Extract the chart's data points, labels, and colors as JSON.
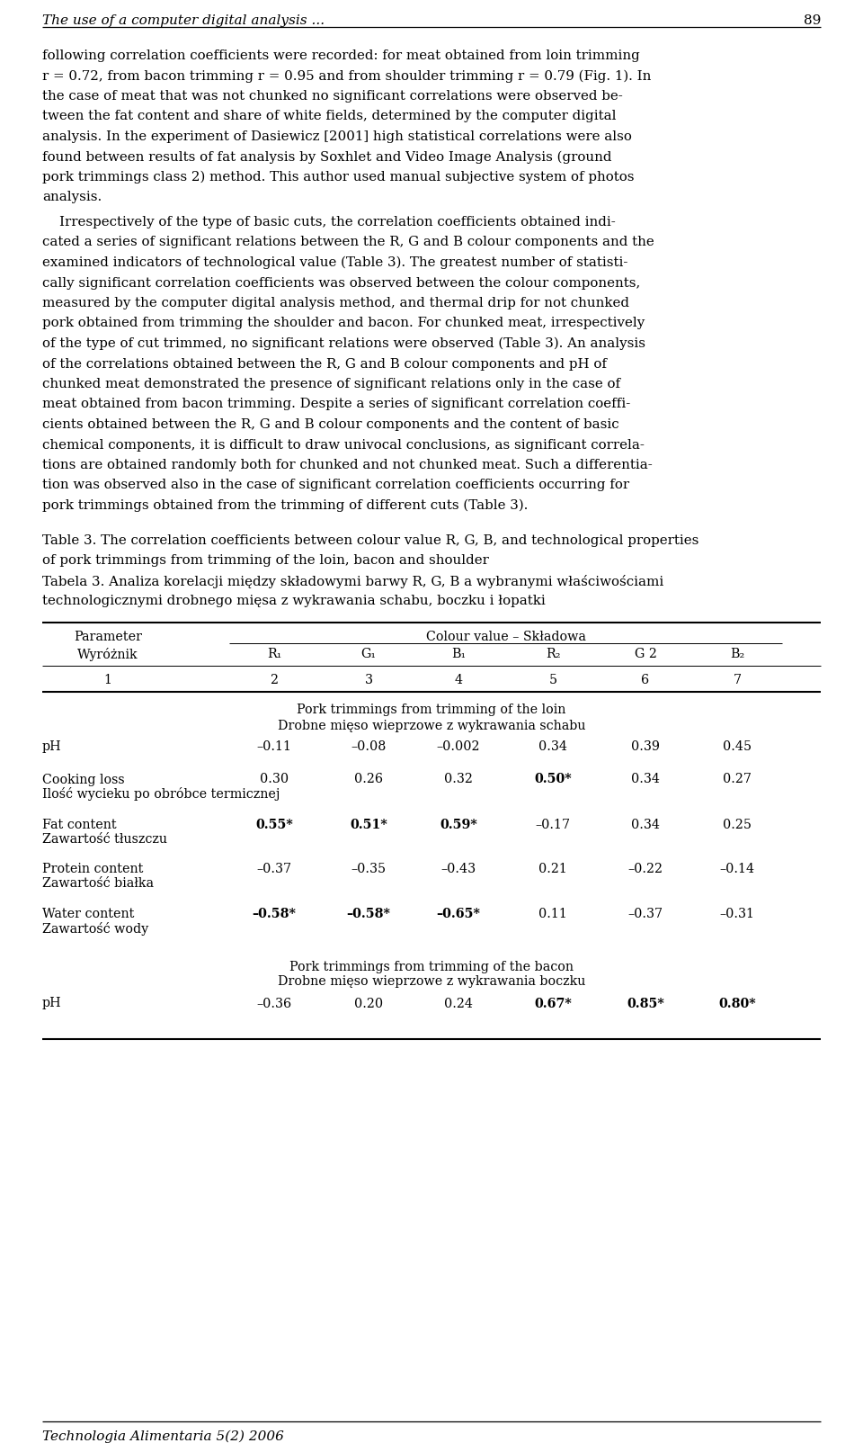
{
  "header_italic": "The use of a computer digital analysis ...",
  "page_number": "89",
  "body_text_lines": [
    "following correlation coefficients were recorded: for meat obtained from loin trimming",
    "r = 0.72, from bacon trimming r = 0.95 and from shoulder trimming r = 0.79 (Fig. 1). In",
    "the case of meat that was not chunked no significant correlations were observed be-",
    "tween the fat content and share of white fields, determined by the computer digital",
    "analysis. In the experiment of Dasiewicz [2001] high statistical correlations were also",
    "found between results of fat analysis by Soxhlet and Video Image Analysis (ground",
    "pork trimmings class 2) method. This author used manual subjective system of photos",
    "analysis."
  ],
  "body_text2_lines": [
    "    Irrespectively of the type of basic cuts, the correlation coefficients obtained indi-",
    "cated a series of significant relations between the R, G and B colour components and the",
    "examined indicators of technological value (Table 3). The greatest number of statisti-",
    "cally significant correlation coefficients was observed between the colour components,",
    "measured by the computer digital analysis method, and thermal drip for not chunked",
    "pork obtained from trimming the shoulder and bacon. For chunked meat, irrespectively",
    "of the type of cut trimmed, no significant relations were observed (Table 3). An analysis",
    "of the correlations obtained between the R, G and B colour components and pH of",
    "chunked meat demonstrated the presence of significant relations only in the case of",
    "meat obtained from bacon trimming. Despite a series of significant correlation coeffi-",
    "cients obtained between the R, G and B colour components and the content of basic",
    "chemical components, it is difficult to draw univocal conclusions, as significant correla-",
    "tions are obtained randomly both for chunked and not chunked meat. Such a differentia-",
    "tion was observed also in the case of significant correlation coefficients occurring for",
    "pork trimmings obtained from the trimming of different cuts (Table 3)."
  ],
  "table_cap_line1": "Table 3. The correlation coefficients between colour value R, G, B, and technological properties",
  "table_cap_line2": "of pork trimmings from trimming of the loin, bacon and shoulder",
  "table_cap_line3": "Tabela 3. Analiza korelacji między składowymi barwy R, G, B a wybranymi właściwościami",
  "table_cap_line4": "technologicznymi drobnego mięsa z wykrawania schabu, boczku i łopatki",
  "col_header_main": "Colour value – Składowa",
  "col_header_left_1": "Parameter",
  "col_header_left_2": "Wyróżnik",
  "col_headers": [
    "R₁",
    "G₁",
    "B₁",
    "R₂",
    "G 2",
    "B₂"
  ],
  "row_numbers": [
    "1",
    "2",
    "3",
    "4",
    "5",
    "6",
    "7"
  ],
  "section1_en": "Pork trimmings from trimming of the loin",
  "section1_pl": "Drobne mięso wieprzowe z wykrawania schabu",
  "section2_en": "Pork trimmings from trimming of the bacon",
  "section2_pl": "Drobne mięso wieprzowe z wykrawania boczku",
  "table_rows_s1": [
    {
      "en": "pH",
      "pl": "",
      "values": [
        "–0.11",
        "–0.08",
        "–0.002",
        "0.34",
        "0.39",
        "0.45"
      ],
      "bold": [
        false,
        false,
        false,
        false,
        false,
        false
      ]
    },
    {
      "en": "Cooking loss",
      "pl": "Ilość wycieku po obróbce termicznej",
      "values": [
        "0.30",
        "0.26",
        "0.32",
        "0.50*",
        "0.34",
        "0.27"
      ],
      "bold": [
        false,
        false,
        false,
        true,
        false,
        false
      ]
    },
    {
      "en": "Fat content",
      "pl": "Zawartość tłuszczu",
      "values": [
        "0.55*",
        "0.51*",
        "0.59*",
        "–0.17",
        "0.34",
        "0.25"
      ],
      "bold": [
        true,
        true,
        true,
        false,
        false,
        false
      ]
    },
    {
      "en": "Protein content",
      "pl": "Zawartość białka",
      "values": [
        "–0.37",
        "–0.35",
        "–0.43",
        "0.21",
        "–0.22",
        "–0.14"
      ],
      "bold": [
        false,
        false,
        false,
        false,
        false,
        false
      ]
    },
    {
      "en": "Water content",
      "pl": "Zawartość wody",
      "values": [
        "–0.58*",
        "–0.58*",
        "–0.65*",
        "0.11",
        "–0.37",
        "–0.31"
      ],
      "bold": [
        true,
        true,
        true,
        false,
        false,
        false
      ]
    }
  ],
  "table_rows_s2": [
    {
      "en": "pH",
      "pl": "",
      "values": [
        "–0.36",
        "0.20",
        "0.24",
        "0.67*",
        "0.85*",
        "0.80*"
      ],
      "bold": [
        false,
        false,
        false,
        true,
        true,
        true
      ]
    }
  ],
  "footer_italic": "Technologia Alimentaria 5(2) 2006"
}
